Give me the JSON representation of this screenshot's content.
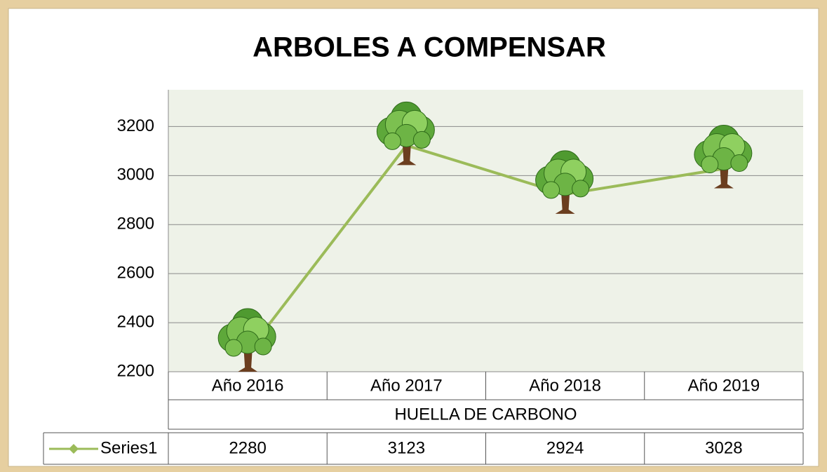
{
  "chart_data": {
    "type": "line",
    "title": "ARBOLES A COMPENSAR",
    "categories": [
      "Año 2016",
      "Año 2017",
      "Año 2018",
      "Año 2019"
    ],
    "x_label": "HUELLA DE CARBONO",
    "series": [
      {
        "name": "Series1",
        "color": "#9bbb59",
        "values": [
          2280,
          3123,
          2924,
          3028
        ]
      }
    ],
    "ylim": [
      2200,
      3350
    ],
    "yticks": [
      2200,
      2400,
      2600,
      2800,
      3000,
      3200
    ],
    "grid": true
  }
}
